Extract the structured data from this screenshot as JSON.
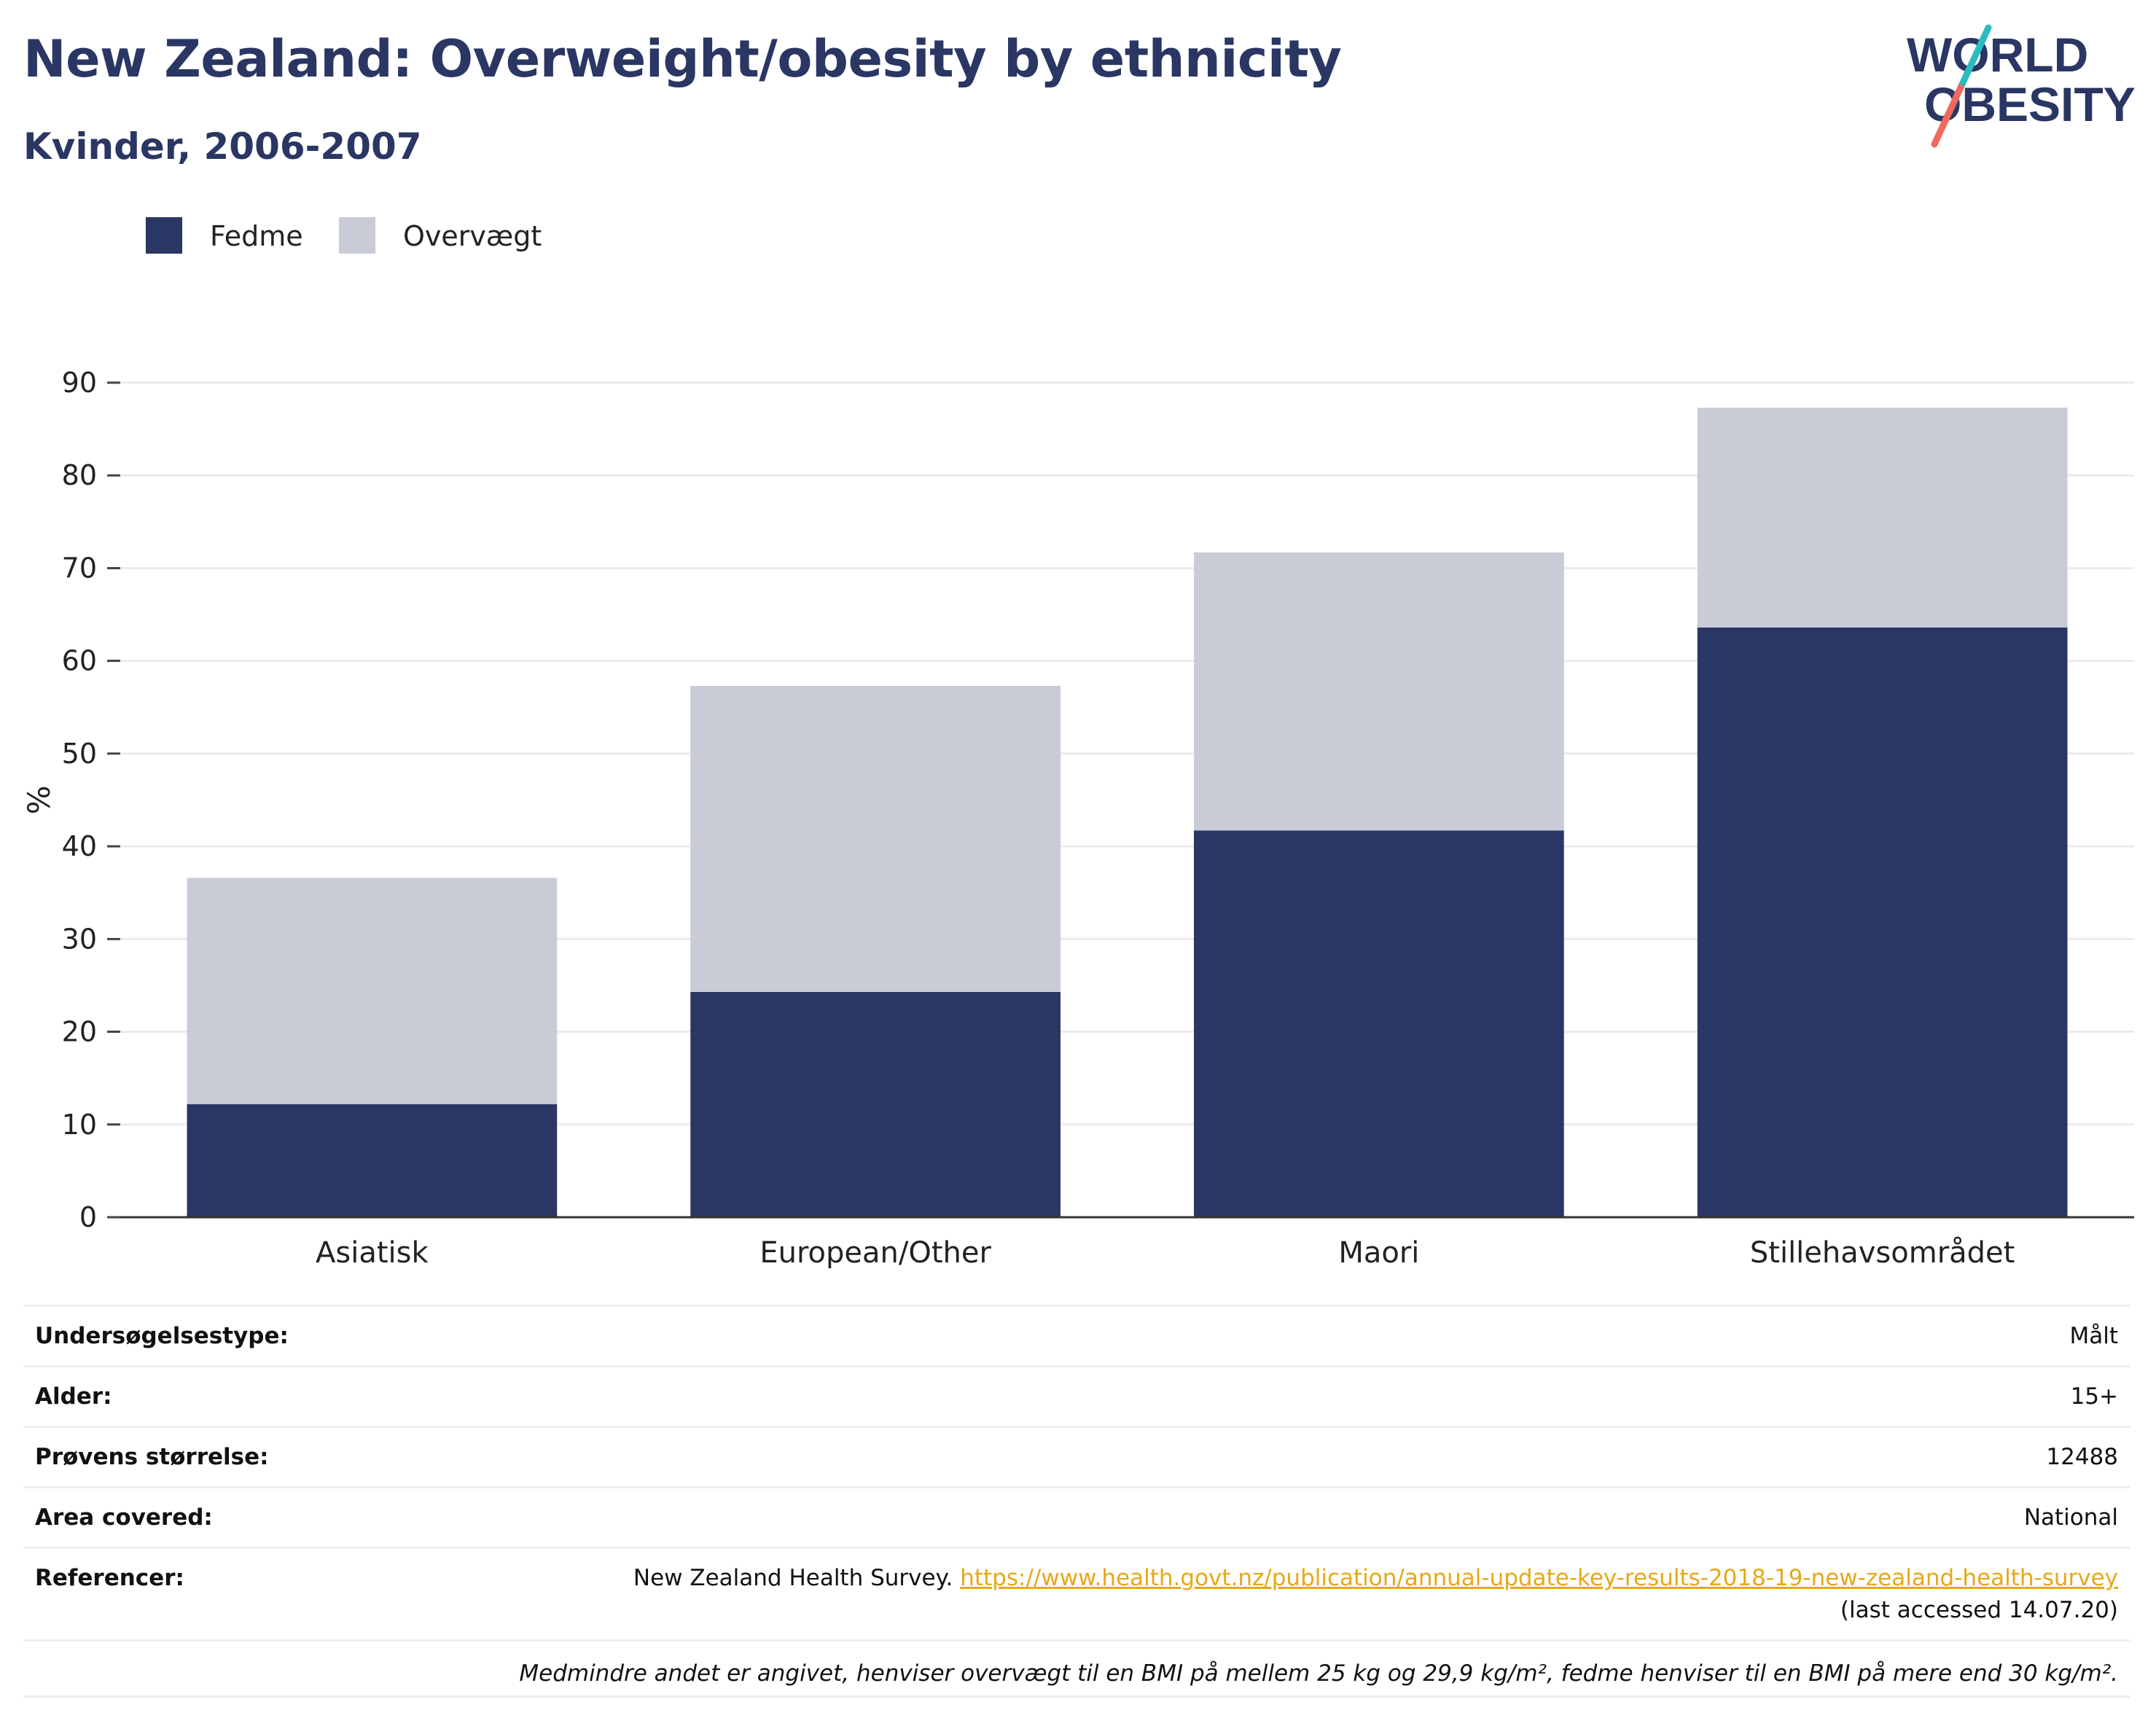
{
  "header": {
    "title": "New Zealand: Overweight/obesity by ethnicity",
    "subtitle": "Kvinder, 2006-2007"
  },
  "logo": {
    "line1": "WORLD",
    "line2": "OBESITY"
  },
  "colors": {
    "title": "#2a3663",
    "fedme": "#2a3663",
    "overvaegt": "#c9cbd7",
    "link": "#e6a817",
    "logo_teal": "#2bbcc0",
    "logo_coral": "#ee6a5e"
  },
  "chart_data": {
    "type": "bar",
    "stacked": true,
    "categories": [
      "Asiatisk",
      "European/Other",
      "Maori",
      "Stillehavsområdet"
    ],
    "series": [
      {
        "name": "Fedme",
        "values": [
          12.2,
          24.3,
          41.7,
          63.6
        ]
      },
      {
        "name": "Overvægt",
        "values": [
          24.4,
          33.0,
          30.0,
          23.7
        ]
      }
    ],
    "totals": [
      36.6,
      57.3,
      71.7,
      87.3
    ],
    "ylabel": "%",
    "xlabel": "",
    "ylim": [
      0,
      90
    ],
    "yticks": [
      0,
      10,
      20,
      30,
      40,
      50,
      60,
      70,
      80,
      90
    ],
    "grid": true,
    "legend_position": "top-left"
  },
  "info": {
    "survey_type": {
      "label": "Undersøgelsestype:",
      "value": "Målt"
    },
    "age": {
      "label": "Alder:",
      "value": "15+"
    },
    "sample_size": {
      "label": "Prøvens størrelse:",
      "value": "12488"
    },
    "area": {
      "label": "Area covered:",
      "value": "National"
    },
    "references": {
      "label": "Referencer:",
      "source": "New Zealand Health Survey.",
      "url": "https://www.health.govt.nz/publication/annual-update-key-results-2018-19-new-zealand-health-survey",
      "accessed": "(last accessed 14.07.20)"
    },
    "footnote": "Medmindre andet er angivet, henviser overvægt til en BMI på mellem 25 kg og 29,9 kg/m², fedme henviser til en BMI på mere end 30 kg/m²."
  }
}
